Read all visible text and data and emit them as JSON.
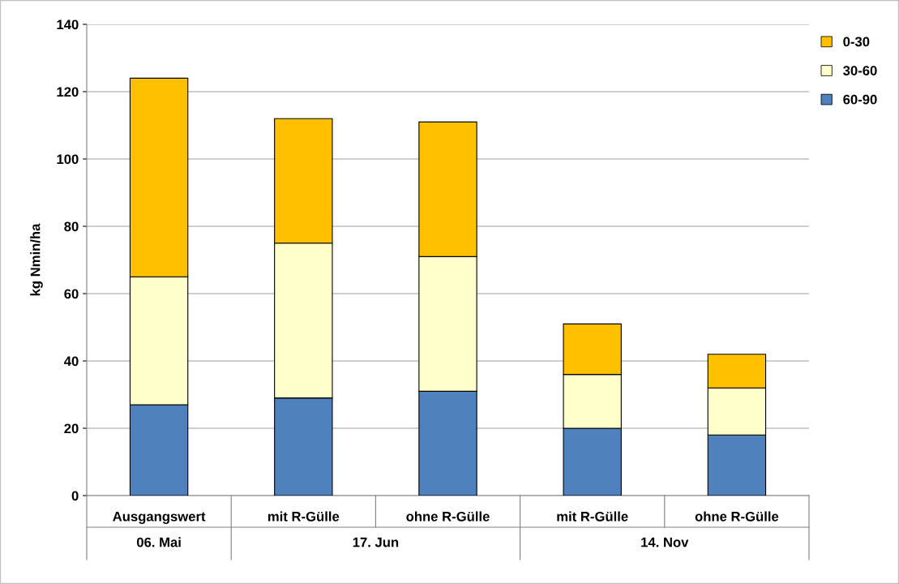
{
  "chart_data": {
    "type": "bar",
    "stacked": true,
    "ylabel": "kg Nmin/ha",
    "categories": [
      "Ausgangswert",
      "mit R-Gülle",
      "ohne R-Gülle",
      "mit R-Gülle",
      "ohne R-Gülle"
    ],
    "series": [
      {
        "name": "60-90",
        "color": "#4f81bd",
        "values": [
          27,
          29,
          31,
          20,
          18
        ]
      },
      {
        "name": "30-60",
        "color": "#ffffcc",
        "values": [
          38,
          46,
          40,
          16,
          14
        ]
      },
      {
        "name": "0-30",
        "color": "#ffc000",
        "values": [
          59,
          37,
          40,
          15,
          10
        ]
      }
    ],
    "annotations": [
      "06. Mai",
      "17. Jun",
      "14. Nov"
    ],
    "ylim": [
      0,
      140
    ],
    "yticks": [
      0,
      20,
      40,
      60,
      80,
      100,
      120,
      140
    ],
    "grid": "y",
    "legend": "top right"
  }
}
